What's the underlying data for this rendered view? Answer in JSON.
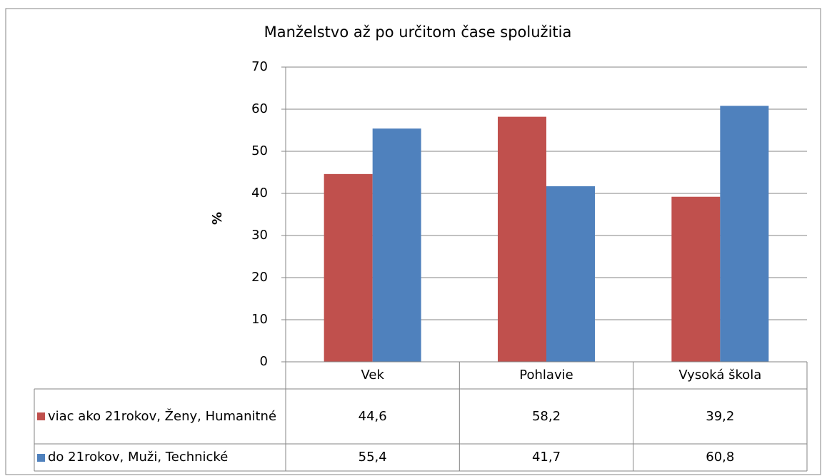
{
  "chart_data": {
    "type": "bar",
    "title": "Manželstvo až po určitom čase spolužitia",
    "y_label": "%",
    "categories": [
      "Vek",
      "Pohlavie",
      "Vysoká škola"
    ],
    "series": [
      {
        "name": "viac ako 21rokov, Ženy, Humanitné",
        "color": "#c0504d",
        "values": [
          44.6,
          58.2,
          39.2
        ],
        "value_labels": [
          "44,6",
          "58,2",
          "39,2"
        ]
      },
      {
        "name": "do 21rokov, Muži, Technické",
        "color": "#4f81bd",
        "values": [
          55.4,
          41.7,
          60.8
        ],
        "value_labels": [
          "55,4",
          "41,7",
          "60,8"
        ]
      }
    ],
    "ylim": [
      0,
      70
    ],
    "yticks": [
      0,
      10,
      20,
      30,
      40,
      50,
      60,
      70
    ],
    "grid": true,
    "data_table": true
  }
}
